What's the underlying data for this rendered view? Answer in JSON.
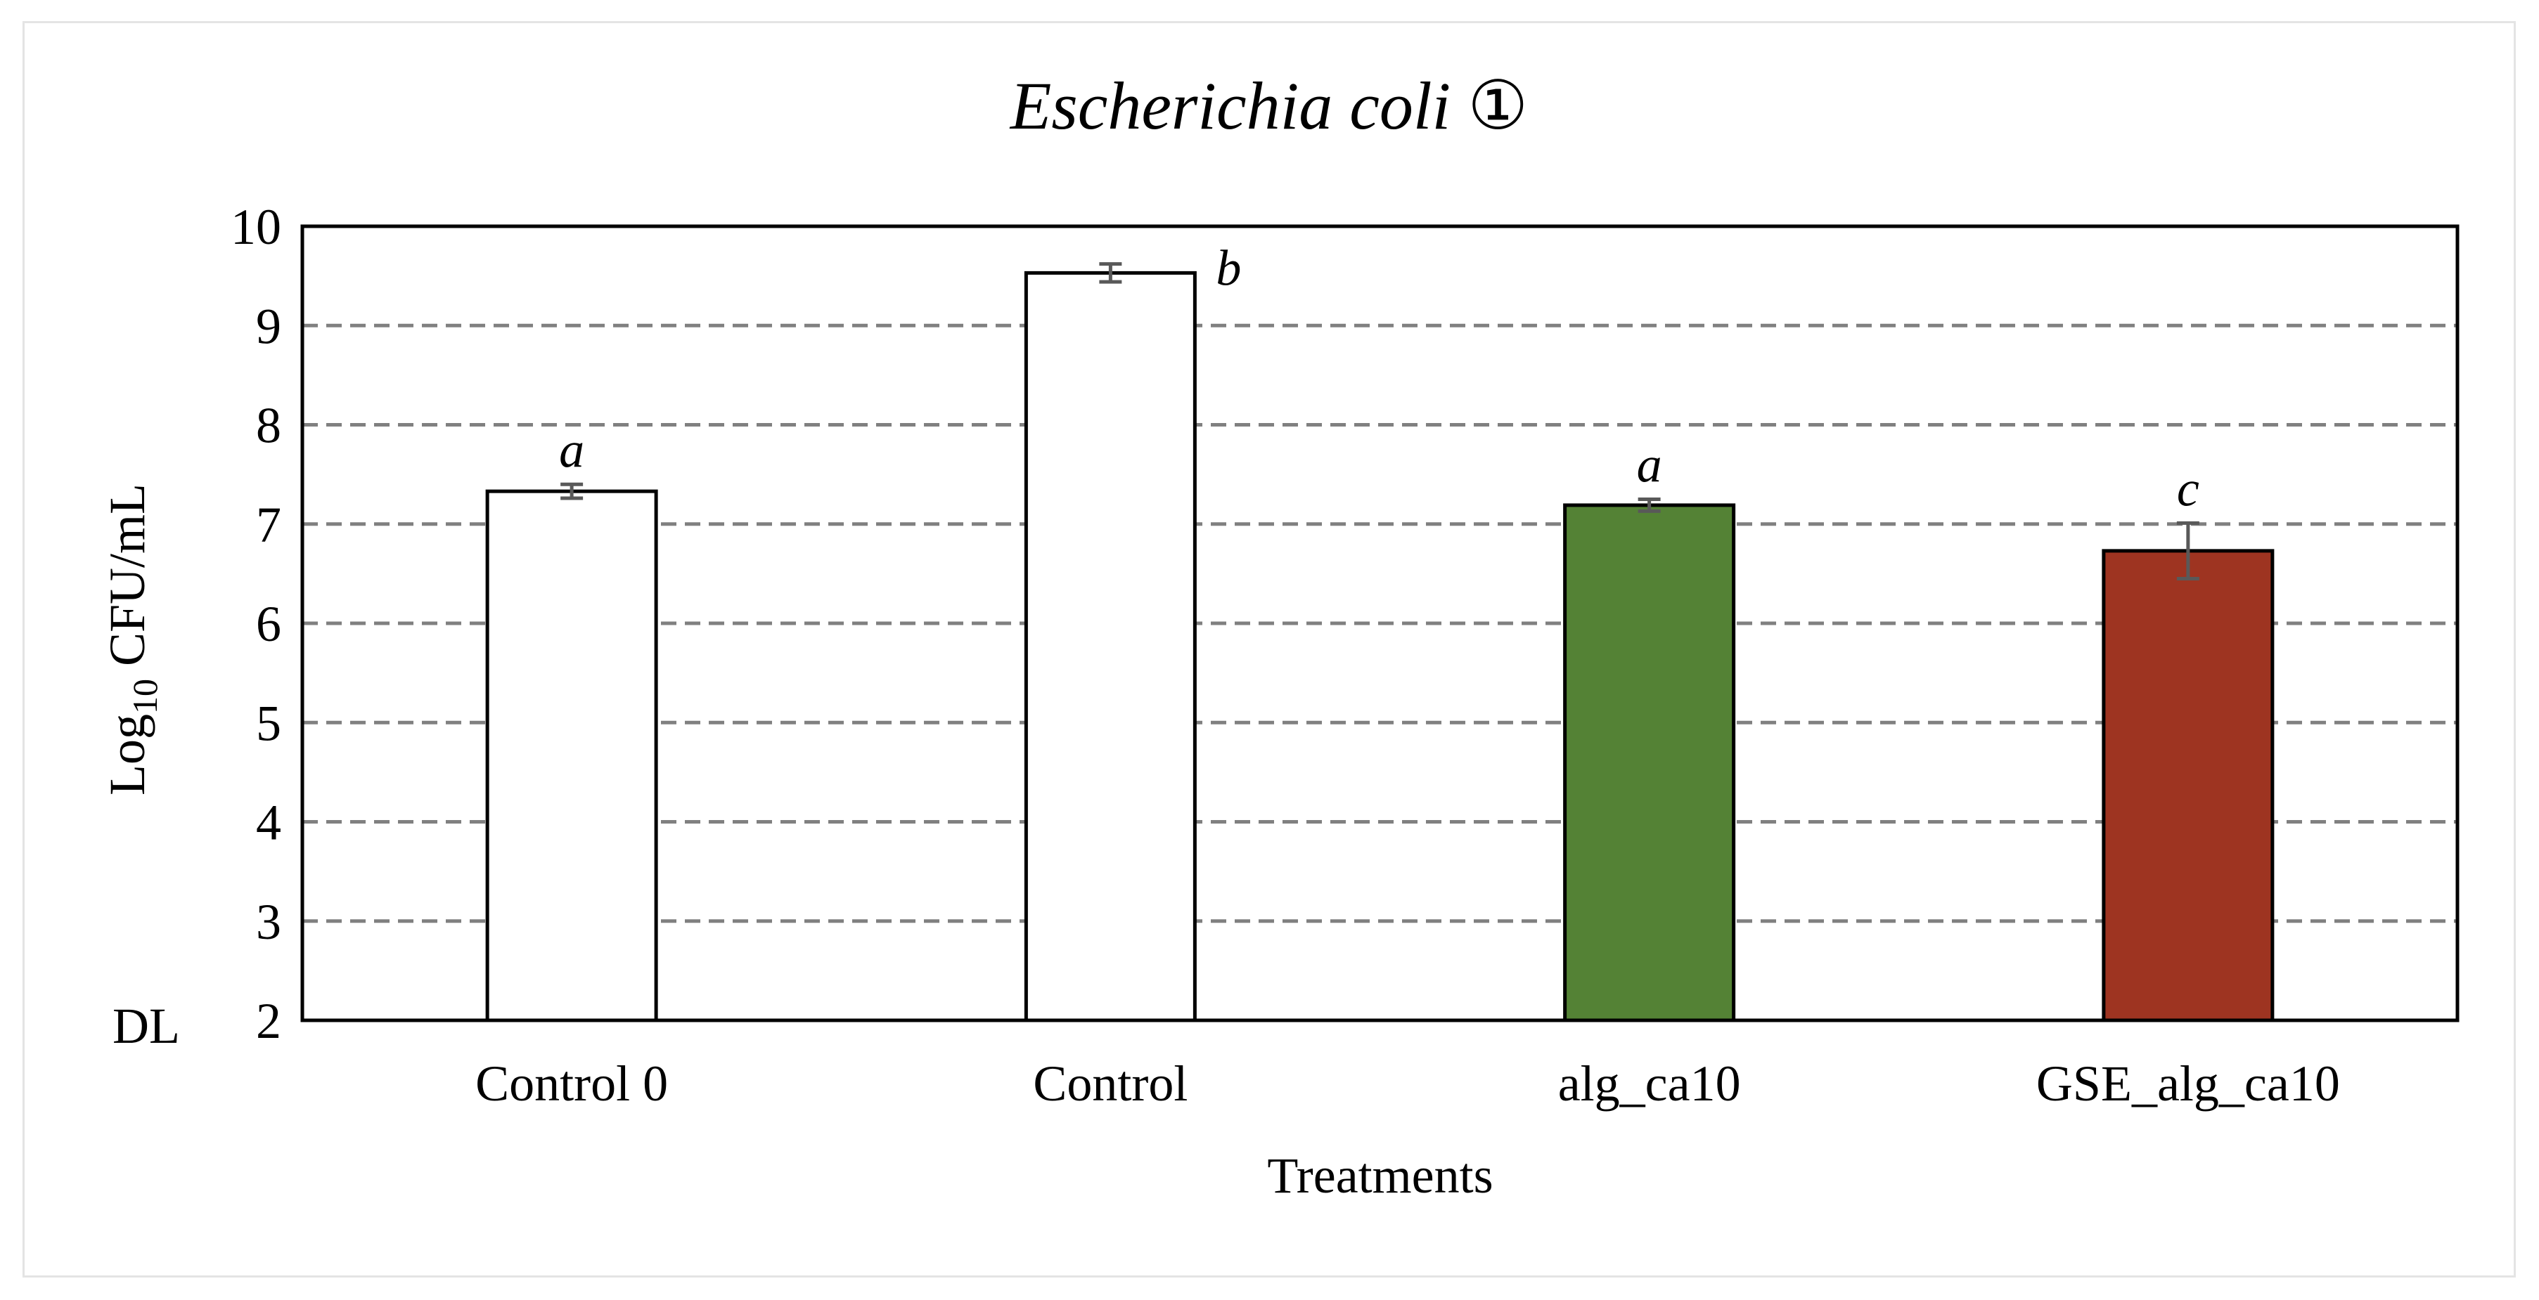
{
  "chart_data": {
    "type": "bar",
    "title": "Escherichia coli",
    "title_mark": "①",
    "xlabel": "Treatments",
    "ylabel": {
      "base": "Log",
      "subscript": "10",
      "rest": " CFU/mL"
    },
    "ylim": [
      2,
      10
    ],
    "yticks": [
      {
        "value": 2,
        "label": "2"
      },
      {
        "value": 3,
        "label": "3"
      },
      {
        "value": 4,
        "label": "4"
      },
      {
        "value": 5,
        "label": "5"
      },
      {
        "value": 6,
        "label": "6"
      },
      {
        "value": 7,
        "label": "7"
      },
      {
        "value": 8,
        "label": "8"
      },
      {
        "value": 9,
        "label": "9"
      },
      {
        "value": 10,
        "label": "10"
      }
    ],
    "grid": "horizontal dashed",
    "dl_label": "DL",
    "dl_color": "#c0161b",
    "categories": [
      "Control 0",
      "Control",
      "alg_ca10",
      "GSE_alg_ca10"
    ],
    "values": [
      7.33,
      9.53,
      7.19,
      6.73
    ],
    "errors": [
      0.07,
      0.09,
      0.06,
      0.28
    ],
    "letters": [
      "a",
      "b",
      "a",
      "c"
    ],
    "colors": [
      "#ffffff",
      "#ffffff",
      "#548235",
      "#9e3421"
    ]
  }
}
